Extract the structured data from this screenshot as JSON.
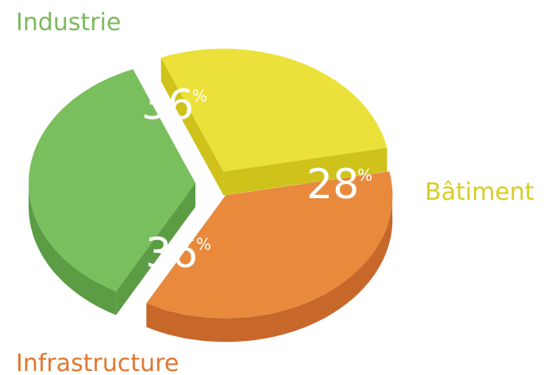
{
  "chart_data": {
    "type": "pie",
    "style": "3d-exploded",
    "legend": "none",
    "categories": [
      "Industrie",
      "Bâtiment",
      "Infrastructure"
    ],
    "values": [
      36,
      28,
      36
    ],
    "labels": [
      "36",
      "28",
      "36"
    ],
    "unit": "%",
    "colors": {
      "Industrie": {
        "top": "#7abf5e",
        "side": "#5b9c44",
        "label": "#7cb95d"
      },
      "Bâtiment": {
        "top": "#ece13a",
        "side": "#cfc21b",
        "label": "#d9cd23"
      },
      "Infrastructure": {
        "top": "#e8893c",
        "side": "#c7672a",
        "label": "#e0782f"
      }
    }
  }
}
